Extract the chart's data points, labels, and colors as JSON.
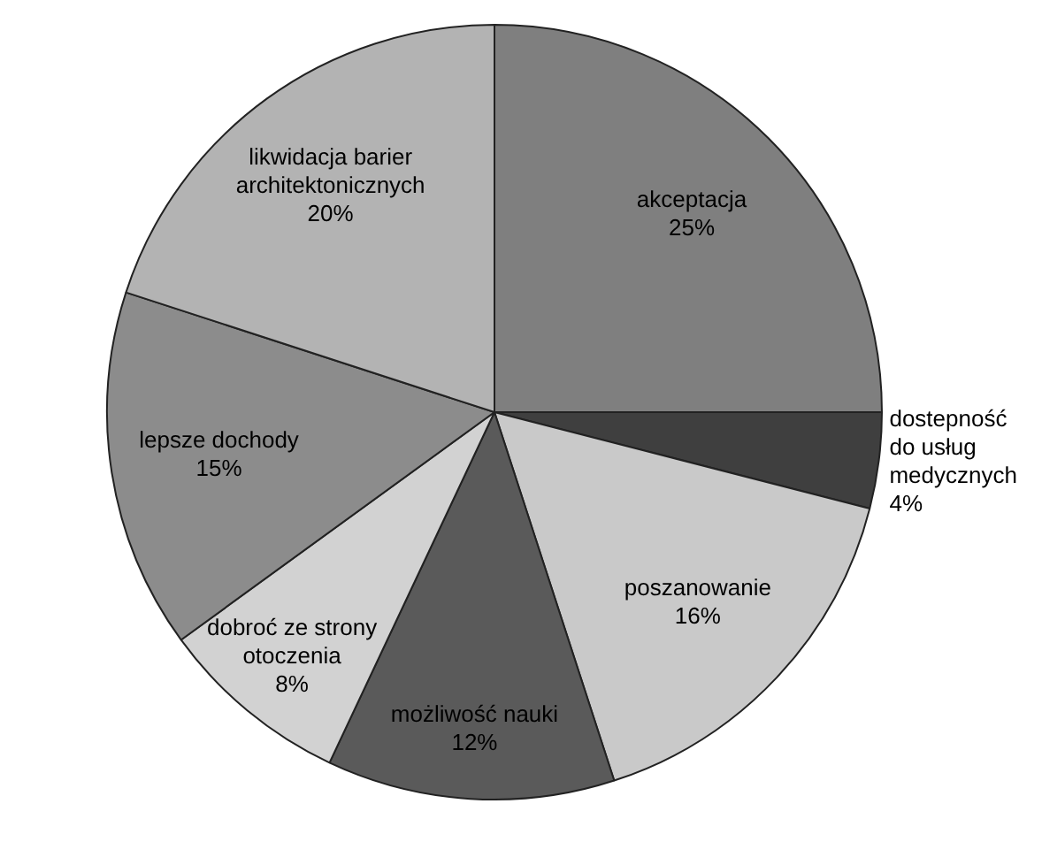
{
  "chart_data": {
    "type": "pie",
    "categories": [
      "akceptacja",
      "dostepność do usług medycznych",
      "poszanowanie",
      "możliwość nauki",
      "dobroć ze strony otoczenia",
      "lepsze dochody",
      "likwidacja barier architektonicznych"
    ],
    "values": [
      25,
      4,
      16,
      12,
      8,
      15,
      20
    ],
    "colors": [
      "#7f7f7f",
      "#3f3f3f",
      "#c9c9c9",
      "#5a5a5a",
      "#d2d2d2",
      "#8c8c8c",
      "#b3b3b3"
    ],
    "value_labels": [
      "25%",
      "4%",
      "16%",
      "12%",
      "8%",
      "15%",
      "20%"
    ],
    "legend": false
  }
}
